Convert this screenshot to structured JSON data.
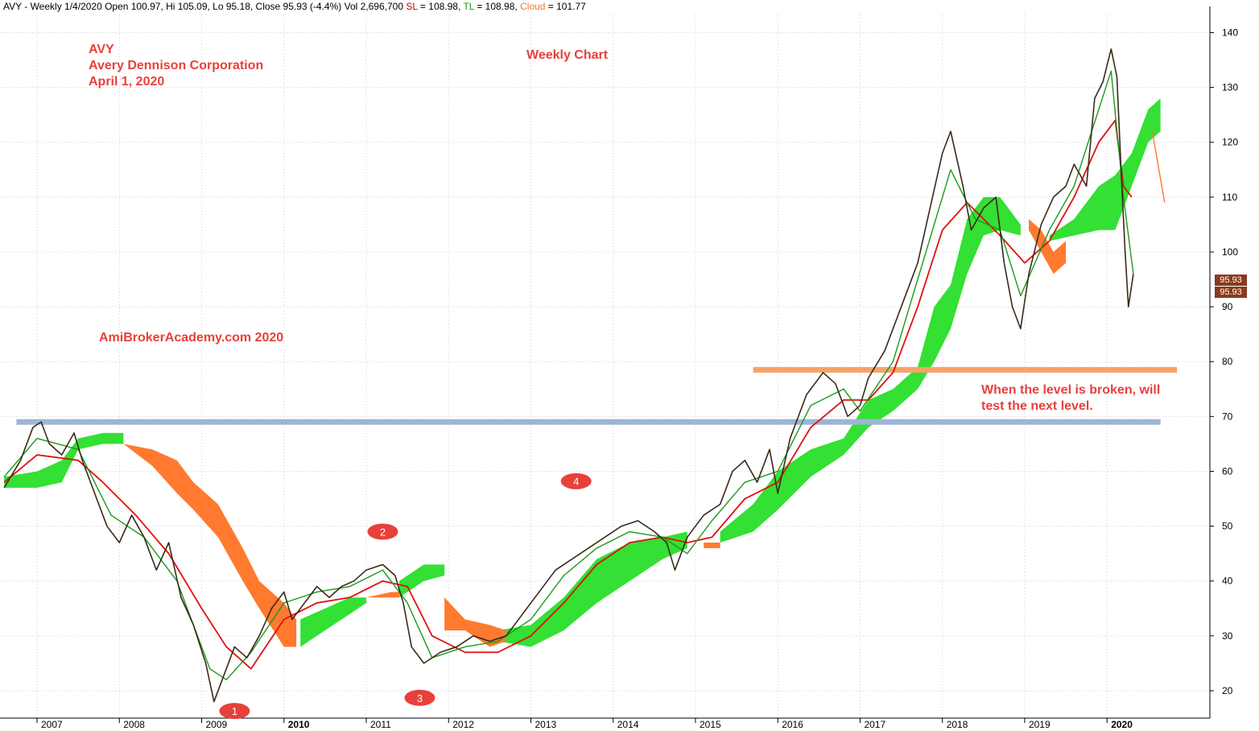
{
  "header": {
    "prefix": "AVY - Weekly 1/4/2020 Open 100.97, Hi 105.09, Lo 95.18, Close 95.93 (-4.4%) Vol 2,696,700",
    "sl_label": "SL",
    "sl_value": "= 108.98,",
    "tl_label": "TL",
    "tl_value": "= 108.98,",
    "cloud_label": "Cloud",
    "cloud_value": "= 101.77"
  },
  "annotations": {
    "ticker": "AVY",
    "company": "Avery Dennison Corporation",
    "date": "April 1, 2020",
    "chart_kind": "Weekly Chart",
    "watermark": "AmiBrokerAcademy.com   2020",
    "level_note_1": "When the level is broken, will",
    "level_note_2": "test the next level.",
    "markers": [
      "1",
      "2",
      "3",
      "4"
    ]
  },
  "price_tags": [
    "95.93",
    "95.93"
  ],
  "chart_data": {
    "type": "line",
    "title": "",
    "xlabel": "",
    "ylabel": "",
    "x_ticks": [
      "2007",
      "2008",
      "2009",
      "2010",
      "2011",
      "2012",
      "2013",
      "2014",
      "2015",
      "2016",
      "2017",
      "2018",
      "2019",
      "2020"
    ],
    "y_ticks": [
      20,
      30,
      40,
      50,
      60,
      70,
      80,
      90,
      100,
      110,
      120,
      130,
      140
    ],
    "xlim": [
      2006.55,
      2021.25
    ],
    "ylim": [
      15,
      143.3
    ],
    "grid": true,
    "price_path": [
      [
        2006.6,
        57
      ],
      [
        2006.8,
        62
      ],
      [
        2006.95,
        68
      ],
      [
        2007.05,
        69
      ],
      [
        2007.15,
        65
      ],
      [
        2007.3,
        63
      ],
      [
        2007.45,
        67
      ],
      [
        2007.55,
        62
      ],
      [
        2007.7,
        56
      ],
      [
        2007.85,
        50
      ],
      [
        2008.0,
        47
      ],
      [
        2008.15,
        52
      ],
      [
        2008.3,
        48
      ],
      [
        2008.45,
        42
      ],
      [
        2008.6,
        47
      ],
      [
        2008.75,
        37
      ],
      [
        2008.9,
        32
      ],
      [
        2009.05,
        25
      ],
      [
        2009.15,
        18
      ],
      [
        2009.25,
        22
      ],
      [
        2009.4,
        28
      ],
      [
        2009.55,
        26
      ],
      [
        2009.7,
        30
      ],
      [
        2009.85,
        35
      ],
      [
        2010.0,
        38
      ],
      [
        2010.1,
        33
      ],
      [
        2010.25,
        36
      ],
      [
        2010.4,
        39
      ],
      [
        2010.55,
        37
      ],
      [
        2010.7,
        39
      ],
      [
        2010.85,
        40
      ],
      [
        2011.0,
        42
      ],
      [
        2011.2,
        43
      ],
      [
        2011.35,
        41
      ],
      [
        2011.45,
        36
      ],
      [
        2011.55,
        28
      ],
      [
        2011.7,
        25
      ],
      [
        2011.9,
        27
      ],
      [
        2012.1,
        28
      ],
      [
        2012.3,
        30
      ],
      [
        2012.5,
        29
      ],
      [
        2012.7,
        30
      ],
      [
        2012.9,
        34
      ],
      [
        2013.1,
        38
      ],
      [
        2013.3,
        42
      ],
      [
        2013.5,
        44
      ],
      [
        2013.7,
        46
      ],
      [
        2013.9,
        48
      ],
      [
        2014.1,
        50
      ],
      [
        2014.3,
        51
      ],
      [
        2014.5,
        49
      ],
      [
        2014.65,
        47
      ],
      [
        2014.75,
        42
      ],
      [
        2014.9,
        48
      ],
      [
        2015.1,
        52
      ],
      [
        2015.3,
        54
      ],
      [
        2015.45,
        60
      ],
      [
        2015.6,
        62
      ],
      [
        2015.75,
        58
      ],
      [
        2015.9,
        64
      ],
      [
        2016.0,
        56
      ],
      [
        2016.15,
        66
      ],
      [
        2016.35,
        74
      ],
      [
        2016.55,
        78
      ],
      [
        2016.7,
        76
      ],
      [
        2016.85,
        70
      ],
      [
        2017.0,
        72
      ],
      [
        2017.1,
        77
      ],
      [
        2017.3,
        82
      ],
      [
        2017.5,
        90
      ],
      [
        2017.7,
        98
      ],
      [
        2017.85,
        108
      ],
      [
        2018.0,
        118
      ],
      [
        2018.1,
        122
      ],
      [
        2018.25,
        112
      ],
      [
        2018.35,
        104
      ],
      [
        2018.5,
        108
      ],
      [
        2018.65,
        110
      ],
      [
        2018.75,
        98
      ],
      [
        2018.85,
        90
      ],
      [
        2018.95,
        86
      ],
      [
        2019.05,
        96
      ],
      [
        2019.2,
        105
      ],
      [
        2019.35,
        110
      ],
      [
        2019.5,
        112
      ],
      [
        2019.6,
        116
      ],
      [
        2019.75,
        112
      ],
      [
        2019.85,
        128
      ],
      [
        2019.95,
        131
      ],
      [
        2020.05,
        137
      ],
      [
        2020.12,
        132
      ],
      [
        2020.18,
        112
      ],
      [
        2020.22,
        100
      ],
      [
        2020.26,
        90
      ],
      [
        2020.32,
        96
      ]
    ],
    "tenkan_path": [
      [
        2006.6,
        59
      ],
      [
        2007.0,
        66
      ],
      [
        2007.5,
        64
      ],
      [
        2007.9,
        52
      ],
      [
        2008.3,
        48
      ],
      [
        2008.7,
        40
      ],
      [
        2009.1,
        24
      ],
      [
        2009.3,
        22
      ],
      [
        2009.6,
        27
      ],
      [
        2010.0,
        36
      ],
      [
        2010.4,
        38
      ],
      [
        2010.8,
        39
      ],
      [
        2011.2,
        42
      ],
      [
        2011.5,
        36
      ],
      [
        2011.8,
        26
      ],
      [
        2012.2,
        28
      ],
      [
        2012.6,
        29
      ],
      [
        2013.0,
        33
      ],
      [
        2013.4,
        41
      ],
      [
        2013.8,
        46
      ],
      [
        2014.2,
        49
      ],
      [
        2014.6,
        48
      ],
      [
        2014.9,
        45
      ],
      [
        2015.2,
        51
      ],
      [
        2015.6,
        58
      ],
      [
        2016.0,
        60
      ],
      [
        2016.4,
        72
      ],
      [
        2016.8,
        75
      ],
      [
        2017.0,
        71
      ],
      [
        2017.4,
        80
      ],
      [
        2017.8,
        100
      ],
      [
        2018.1,
        115
      ],
      [
        2018.4,
        106
      ],
      [
        2018.7,
        104
      ],
      [
        2018.95,
        92
      ],
      [
        2019.3,
        104
      ],
      [
        2019.6,
        112
      ],
      [
        2019.9,
        126
      ],
      [
        2020.05,
        133
      ],
      [
        2020.2,
        110
      ],
      [
        2020.32,
        96
      ]
    ],
    "kijun_path": [
      [
        2006.6,
        58
      ],
      [
        2007.0,
        63
      ],
      [
        2007.5,
        62
      ],
      [
        2007.8,
        58
      ],
      [
        2008.2,
        52
      ],
      [
        2008.6,
        45
      ],
      [
        2008.8,
        40
      ],
      [
        2009.0,
        35
      ],
      [
        2009.3,
        28
      ],
      [
        2009.6,
        24
      ],
      [
        2010.0,
        33
      ],
      [
        2010.4,
        36
      ],
      [
        2010.8,
        37
      ],
      [
        2011.2,
        40
      ],
      [
        2011.5,
        39
      ],
      [
        2011.8,
        30
      ],
      [
        2012.2,
        27
      ],
      [
        2012.6,
        27
      ],
      [
        2013.0,
        30
      ],
      [
        2013.4,
        36
      ],
      [
        2013.8,
        43
      ],
      [
        2014.2,
        47
      ],
      [
        2014.6,
        48
      ],
      [
        2014.9,
        47
      ],
      [
        2015.2,
        48
      ],
      [
        2015.6,
        55
      ],
      [
        2016.0,
        58
      ],
      [
        2016.4,
        68
      ],
      [
        2016.8,
        73
      ],
      [
        2017.1,
        73
      ],
      [
        2017.4,
        78
      ],
      [
        2017.7,
        90
      ],
      [
        2018.0,
        104
      ],
      [
        2018.3,
        109
      ],
      [
        2018.7,
        103
      ],
      [
        2019.0,
        98
      ],
      [
        2019.3,
        102
      ],
      [
        2019.6,
        110
      ],
      [
        2019.9,
        120
      ],
      [
        2020.1,
        124
      ],
      [
        2020.2,
        112
      ],
      [
        2020.3,
        110
      ]
    ],
    "cloud_green_segments": [
      [
        [
          2006.6,
          57,
          59
        ],
        [
          2007.0,
          57,
          60
        ],
        [
          2007.3,
          58,
          62
        ],
        [
          2007.5,
          64,
          66
        ],
        [
          2007.8,
          65,
          67
        ],
        [
          2008.05,
          65,
          67
        ]
      ],
      [
        [
          2010.2,
          28,
          33
        ],
        [
          2010.5,
          31,
          35
        ],
        [
          2010.8,
          34,
          37
        ],
        [
          2011.0,
          36,
          37
        ]
      ],
      [
        [
          2011.4,
          37,
          40
        ],
        [
          2011.7,
          40,
          43
        ],
        [
          2011.95,
          41,
          43
        ]
      ],
      [
        [
          2012.6,
          29,
          31
        ],
        [
          2013.0,
          28,
          32
        ],
        [
          2013.4,
          31,
          37
        ],
        [
          2013.8,
          36,
          44
        ],
        [
          2014.2,
          40,
          47
        ],
        [
          2014.6,
          44,
          48
        ],
        [
          2014.9,
          46,
          49
        ]
      ],
      [
        [
          2015.3,
          47,
          49
        ],
        [
          2015.7,
          49,
          54
        ],
        [
          2016.0,
          53,
          60
        ],
        [
          2016.4,
          59,
          64
        ],
        [
          2016.8,
          63,
          66
        ],
        [
          2017.1,
          68,
          73
        ],
        [
          2017.4,
          71,
          75
        ],
        [
          2017.7,
          75,
          79
        ],
        [
          2017.9,
          80,
          90
        ],
        [
          2018.1,
          86,
          94
        ],
        [
          2018.3,
          96,
          106
        ],
        [
          2018.5,
          103,
          110
        ],
        [
          2018.7,
          104,
          110
        ],
        [
          2018.95,
          103,
          105
        ]
      ],
      [
        [
          2019.3,
          102,
          103
        ],
        [
          2019.6,
          103,
          106
        ],
        [
          2019.9,
          104,
          112
        ],
        [
          2020.1,
          104,
          114
        ],
        [
          2020.3,
          112,
          118
        ],
        [
          2020.5,
          120,
          126
        ],
        [
          2020.65,
          122,
          128
        ]
      ]
    ],
    "cloud_orange_segments": [
      [
        [
          2008.05,
          65,
          65
        ],
        [
          2008.4,
          61,
          64
        ],
        [
          2008.7,
          56,
          62
        ],
        [
          2008.9,
          53,
          58
        ],
        [
          2009.2,
          48,
          54
        ],
        [
          2009.5,
          40,
          46
        ],
        [
          2009.7,
          35,
          40
        ],
        [
          2010.0,
          28,
          36
        ],
        [
          2010.15,
          28,
          33
        ]
      ],
      [
        [
          2011.0,
          37,
          37
        ],
        [
          2011.3,
          37,
          38
        ],
        [
          2011.4,
          37,
          38
        ]
      ],
      [
        [
          2011.95,
          31,
          37
        ],
        [
          2012.2,
          31,
          33
        ],
        [
          2012.5,
          28,
          32
        ],
        [
          2012.7,
          29,
          31
        ]
      ],
      [
        [
          2015.1,
          46,
          47
        ],
        [
          2015.3,
          46,
          47
        ]
      ],
      [
        [
          2019.05,
          104,
          106
        ],
        [
          2019.2,
          100,
          104
        ],
        [
          2019.35,
          96,
          100
        ],
        [
          2019.5,
          98,
          102
        ]
      ]
    ],
    "chikou_tail": [
      [
        2020.55,
        122
      ],
      [
        2020.7,
        109
      ]
    ],
    "horizontal_levels": [
      {
        "value": 69,
        "x_from": 2006.75,
        "x_to": 2020.65,
        "color": "#9db4d8"
      },
      {
        "value": 78.5,
        "x_from": 2015.7,
        "x_to": 2020.85,
        "color": "#f5a36a"
      }
    ],
    "last_close": 95.93
  }
}
